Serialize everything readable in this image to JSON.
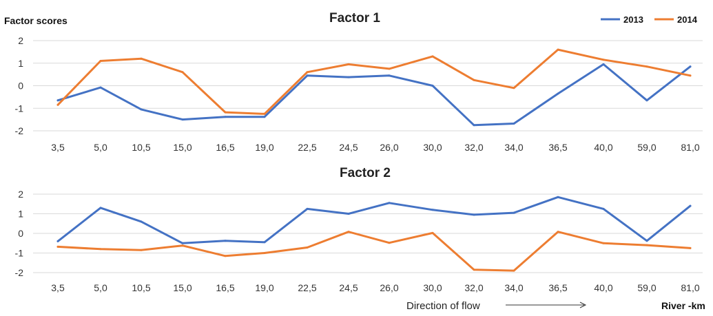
{
  "page": {
    "y_axis_title": "Factor scores",
    "x_axis_title": "River -km",
    "flow_label": "Direction of flow"
  },
  "legend": [
    {
      "name": "2013",
      "color": "#4472c4"
    },
    {
      "name": "2014",
      "color": "#ed7d31"
    }
  ],
  "chart_data": [
    {
      "type": "line",
      "title": "Factor 1",
      "categories": [
        "3,5",
        "5,0",
        "10,5",
        "15,0",
        "16,5",
        "19,0",
        "22,5",
        "24,5",
        "26,0",
        "30,0",
        "32,0",
        "34,0",
        "36,5",
        "40,0",
        "59,0",
        "81,0"
      ],
      "ylim": [
        -2,
        2
      ],
      "yticks": [
        2,
        1,
        0,
        -1,
        -2
      ],
      "grid": true,
      "legend_position": "top-right",
      "series": [
        {
          "name": "2013",
          "color": "#4472c4",
          "values": [
            -0.65,
            -0.08,
            -1.05,
            -1.5,
            -1.38,
            -1.38,
            0.45,
            0.38,
            0.45,
            0.0,
            -1.75,
            -1.68,
            -0.35,
            0.95,
            -0.65,
            0.85
          ]
        },
        {
          "name": "2014",
          "color": "#ed7d31",
          "values": [
            -0.85,
            1.1,
            1.2,
            0.6,
            -1.18,
            -1.25,
            0.6,
            0.95,
            0.75,
            1.3,
            0.25,
            -0.1,
            1.6,
            1.15,
            0.85,
            0.45
          ]
        }
      ]
    },
    {
      "type": "line",
      "title": "Factor 2",
      "categories": [
        "3,5",
        "5,0",
        "10,5",
        "15,0",
        "16,5",
        "19,0",
        "22,5",
        "24,5",
        "26,0",
        "30,0",
        "32,0",
        "34,0",
        "36,5",
        "40,0",
        "59,0",
        "81,0"
      ],
      "ylim": [
        -2,
        2
      ],
      "yticks": [
        2,
        1,
        0,
        -1,
        -2
      ],
      "grid": true,
      "series": [
        {
          "name": "2013",
          "color": "#4472c4",
          "values": [
            -0.4,
            1.3,
            0.6,
            -0.5,
            -0.38,
            -0.45,
            1.25,
            1.0,
            1.55,
            1.2,
            0.95,
            1.05,
            1.85,
            1.25,
            -0.38,
            1.4
          ]
        },
        {
          "name": "2014",
          "color": "#ed7d31",
          "values": [
            -0.68,
            -0.8,
            -0.85,
            -0.62,
            -1.15,
            -1.0,
            -0.72,
            0.08,
            -0.48,
            0.02,
            -1.85,
            -1.9,
            0.08,
            -0.5,
            -0.6,
            -0.75
          ]
        }
      ]
    }
  ]
}
